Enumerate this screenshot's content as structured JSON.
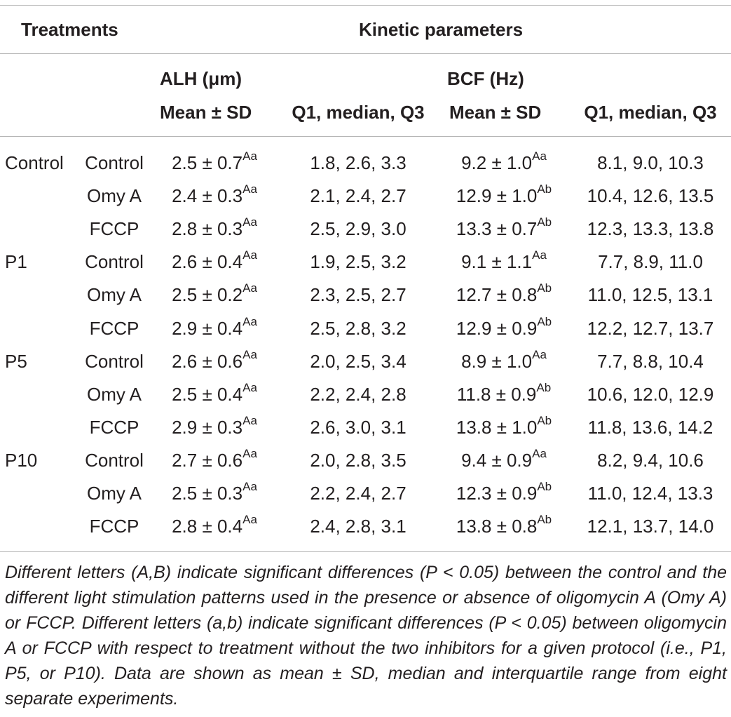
{
  "header": {
    "treatments": "Treatments",
    "kinetic_parameters": "Kinetic parameters",
    "alh": "ALH (μm)",
    "bcf": "BCF (Hz)",
    "mean_sd": "Mean ± SD",
    "quartiles": "Q1, median, Q3"
  },
  "rows": [
    {
      "group": "Control",
      "treatment": "Control",
      "alh_mean": "2.5 ± 0.7",
      "alh_sup": "Aa",
      "alh_q": "1.8, 2.6, 3.3",
      "bcf_mean": "9.2 ± 1.0",
      "bcf_sup": "Aa",
      "bcf_q": "8.1, 9.0, 10.3"
    },
    {
      "group": "",
      "treatment": "Omy A",
      "alh_mean": "2.4 ± 0.3",
      "alh_sup": "Aa",
      "alh_q": "2.1, 2.4, 2.7",
      "bcf_mean": "12.9 ± 1.0",
      "bcf_sup": "Ab",
      "bcf_q": "10.4, 12.6, 13.5"
    },
    {
      "group": "",
      "treatment": "FCCP",
      "alh_mean": "2.8 ± 0.3",
      "alh_sup": "Aa",
      "alh_q": "2.5, 2.9, 3.0",
      "bcf_mean": "13.3 ± 0.7",
      "bcf_sup": "Ab",
      "bcf_q": "12.3, 13.3, 13.8"
    },
    {
      "group": "P1",
      "treatment": "Control",
      "alh_mean": "2.6 ± 0.4",
      "alh_sup": "Aa",
      "alh_q": "1.9, 2.5, 3.2",
      "bcf_mean": "9.1 ± 1.1",
      "bcf_sup": "Aa",
      "bcf_q": "7.7, 8.9, 11.0"
    },
    {
      "group": "",
      "treatment": "Omy A",
      "alh_mean": "2.5 ± 0.2",
      "alh_sup": "Aa",
      "alh_q": "2.3, 2.5, 2.7",
      "bcf_mean": "12.7 ± 0.8",
      "bcf_sup": "Ab",
      "bcf_q": "11.0, 12.5, 13.1"
    },
    {
      "group": "",
      "treatment": "FCCP",
      "alh_mean": "2.9 ± 0.4",
      "alh_sup": "Aa",
      "alh_q": "2.5, 2.8, 3.2",
      "bcf_mean": "12.9 ± 0.9",
      "bcf_sup": "Ab",
      "bcf_q": "12.2, 12.7, 13.7"
    },
    {
      "group": "P5",
      "treatment": "Control",
      "alh_mean": "2.6 ± 0.6",
      "alh_sup": "Aa",
      "alh_q": "2.0, 2.5, 3.4",
      "bcf_mean": "8.9 ± 1.0",
      "bcf_sup": "Aa",
      "bcf_q": "7.7, 8.8, 10.4"
    },
    {
      "group": "",
      "treatment": "Omy A",
      "alh_mean": "2.5 ± 0.4",
      "alh_sup": "Aa",
      "alh_q": "2.2, 2.4, 2.8",
      "bcf_mean": "11.8 ± 0.9",
      "bcf_sup": "Ab",
      "bcf_q": "10.6, 12.0, 12.9"
    },
    {
      "group": "",
      "treatment": "FCCP",
      "alh_mean": "2.9 ± 0.3",
      "alh_sup": "Aa",
      "alh_q": "2.6, 3.0, 3.1",
      "bcf_mean": "13.8 ± 1.0",
      "bcf_sup": "Ab",
      "bcf_q": "11.8, 13.6, 14.2"
    },
    {
      "group": "P10",
      "treatment": "Control",
      "alh_mean": "2.7 ± 0.6",
      "alh_sup": "Aa",
      "alh_q": "2.0, 2.8, 3.5",
      "bcf_mean": "9.4 ± 0.9",
      "bcf_sup": "Aa",
      "bcf_q": "8.2, 9.4, 10.6"
    },
    {
      "group": "",
      "treatment": "Omy A",
      "alh_mean": "2.5 ± 0.3",
      "alh_sup": "Aa",
      "alh_q": "2.2, 2.4, 2.7",
      "bcf_mean": "12.3 ± 0.9",
      "bcf_sup": "Ab",
      "bcf_q": "11.0, 12.4, 13.3"
    },
    {
      "group": "",
      "treatment": "FCCP",
      "alh_mean": "2.8 ± 0.4",
      "alh_sup": "Aa",
      "alh_q": "2.4, 2.8, 3.1",
      "bcf_mean": "13.8 ± 0.8",
      "bcf_sup": "Ab",
      "bcf_q": "12.1, 13.7, 14.0"
    }
  ],
  "footnote": "Different letters (A,B) indicate significant differences (P < 0.05) between the control and the different light stimulation patterns used in the presence or absence of oligomycin A (Omy A) or FCCP. Different letters (a,b) indicate significant differences (P < 0.05) between oligomycin A or FCCP with respect to treatment without the two inhibitors for a given protocol (i.e., P1, P5, or P10). Data are shown as mean ± SD, median and interquartile range from eight separate experiments."
}
